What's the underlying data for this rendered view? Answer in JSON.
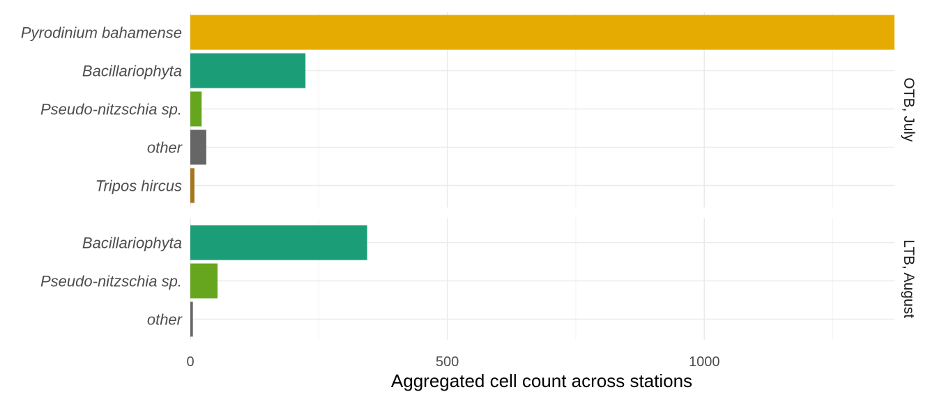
{
  "chart_data": {
    "type": "bar",
    "orientation": "horizontal",
    "xlabel": "Aggregated cell count across stations",
    "xlim": [
      0,
      1370
    ],
    "x_ticks": [
      0,
      500,
      1000
    ],
    "grid": true,
    "panels": [
      {
        "strip": "OTB, July",
        "bars": [
          {
            "category": "Pyrodinium bahamense",
            "value": 1370,
            "color": "#E6AB02"
          },
          {
            "category": "Bacillariophyta",
            "value": 224,
            "color": "#1B9E77"
          },
          {
            "category": "Pseudo-nitzschia sp.",
            "value": 22,
            "color": "#66A61E"
          },
          {
            "category": "other",
            "value": 31,
            "color": "#666666"
          },
          {
            "category": "Tripos hircus",
            "value": 8,
            "color": "#A6761D"
          }
        ]
      },
      {
        "strip": "LTB, August",
        "bars": [
          {
            "category": "Bacillariophyta",
            "value": 344,
            "color": "#1B9E77"
          },
          {
            "category": "Pseudo-nitzschia sp.",
            "value": 53,
            "color": "#66A61E"
          },
          {
            "category": "other",
            "value": 5,
            "color": "#666666"
          }
        ]
      }
    ]
  }
}
